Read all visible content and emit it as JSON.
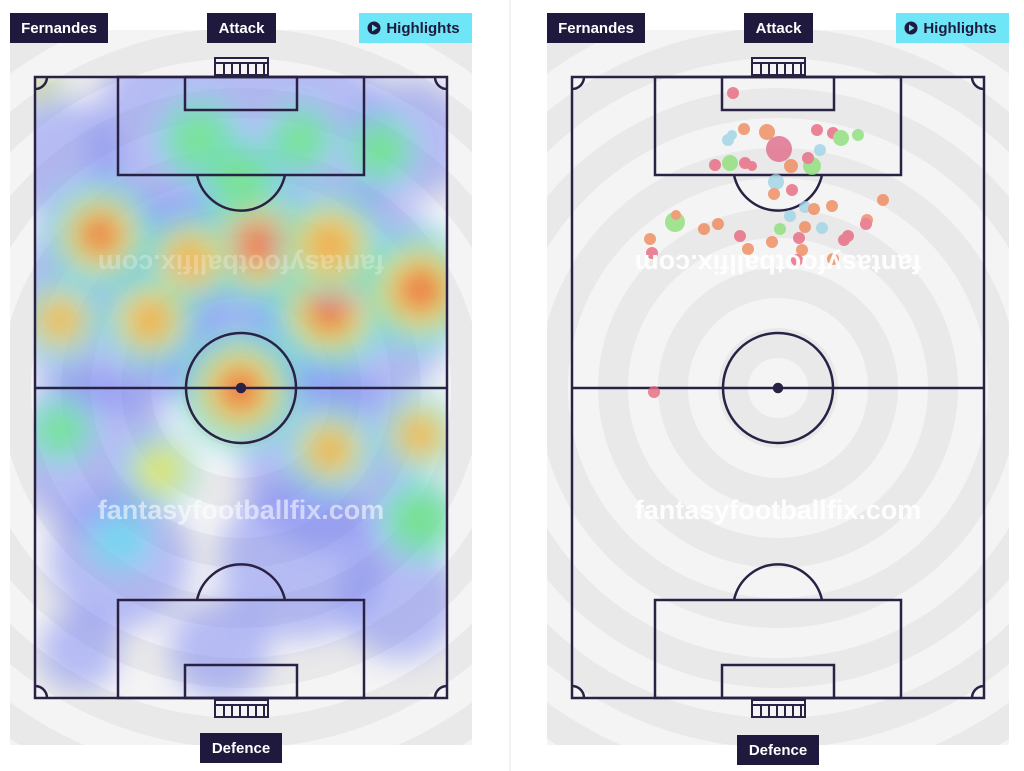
{
  "panels": [
    {
      "player": "Fernandes",
      "top_label": "Attack",
      "button": "Highlights",
      "bottom_label": "Defence",
      "watermarks": [
        "fantasyfootballfix.com",
        "fantasyfootballfix.com"
      ]
    },
    {
      "player": "Fernandes",
      "top_label": "Attack",
      "button": "Highlights",
      "bottom_label": "Defence",
      "watermarks": [
        "fantasyfootballfix.com",
        "fantasyfootballfix.com"
      ]
    }
  ]
}
